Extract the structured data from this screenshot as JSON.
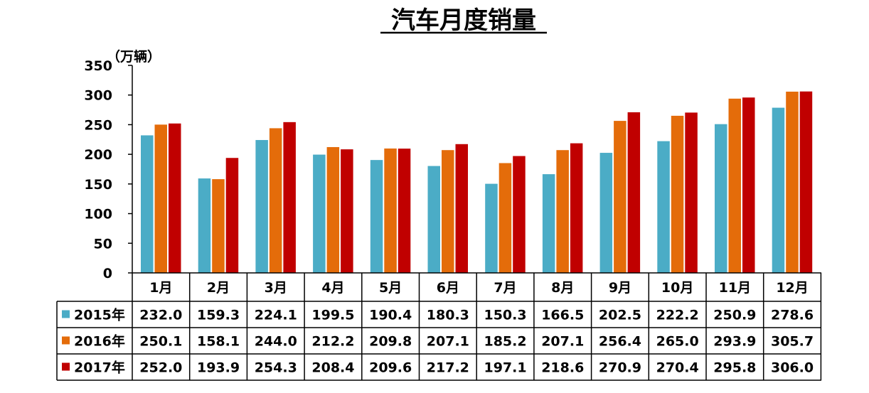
{
  "chart_data": {
    "type": "bar",
    "title": "汽车月度销量",
    "ylabel": "（万辆）",
    "ylim": [
      0,
      350
    ],
    "yticks": [
      0,
      50,
      100,
      150,
      200,
      250,
      300,
      350
    ],
    "categories": [
      "1月",
      "2月",
      "3月",
      "4月",
      "5月",
      "6月",
      "7月",
      "8月",
      "9月",
      "10月",
      "11月",
      "12月"
    ],
    "series": [
      {
        "name": "2015年",
        "color": "#4BACC6",
        "values": [
          232.0,
          159.3,
          224.1,
          199.5,
          190.4,
          180.3,
          150.3,
          166.5,
          202.5,
          222.2,
          250.9,
          278.6
        ]
      },
      {
        "name": "2016年",
        "color": "#E46C0A",
        "values": [
          250.1,
          158.1,
          244.0,
          212.2,
          209.8,
          207.1,
          185.2,
          207.1,
          256.4,
          265.0,
          293.9,
          305.7
        ]
      },
      {
        "name": "2017年",
        "color": "#C00000",
        "values": [
          252.0,
          193.9,
          254.3,
          208.4,
          209.6,
          217.2,
          197.1,
          218.6,
          270.9,
          270.4,
          295.8,
          306.0
        ]
      }
    ],
    "value_labels": [
      [
        "232.0",
        "159.3",
        "224.1",
        "199.5",
        "190.4",
        "180.3",
        "150.3",
        "166.5",
        "202.5",
        "222.2",
        "250.9",
        "278.6"
      ],
      [
        "250.1",
        "158.1",
        "244.0",
        "212.2",
        "209.8",
        "207.1",
        "185.2",
        "207.1",
        "256.4",
        "265.0",
        "293.9",
        "305.7"
      ],
      [
        "252.0",
        "193.9",
        "254.3",
        "208.4",
        "209.6",
        "217.2",
        "197.1",
        "218.6",
        "270.9",
        "270.4",
        "295.8",
        "306.0"
      ]
    ],
    "legend": "data-table",
    "grid": false
  }
}
